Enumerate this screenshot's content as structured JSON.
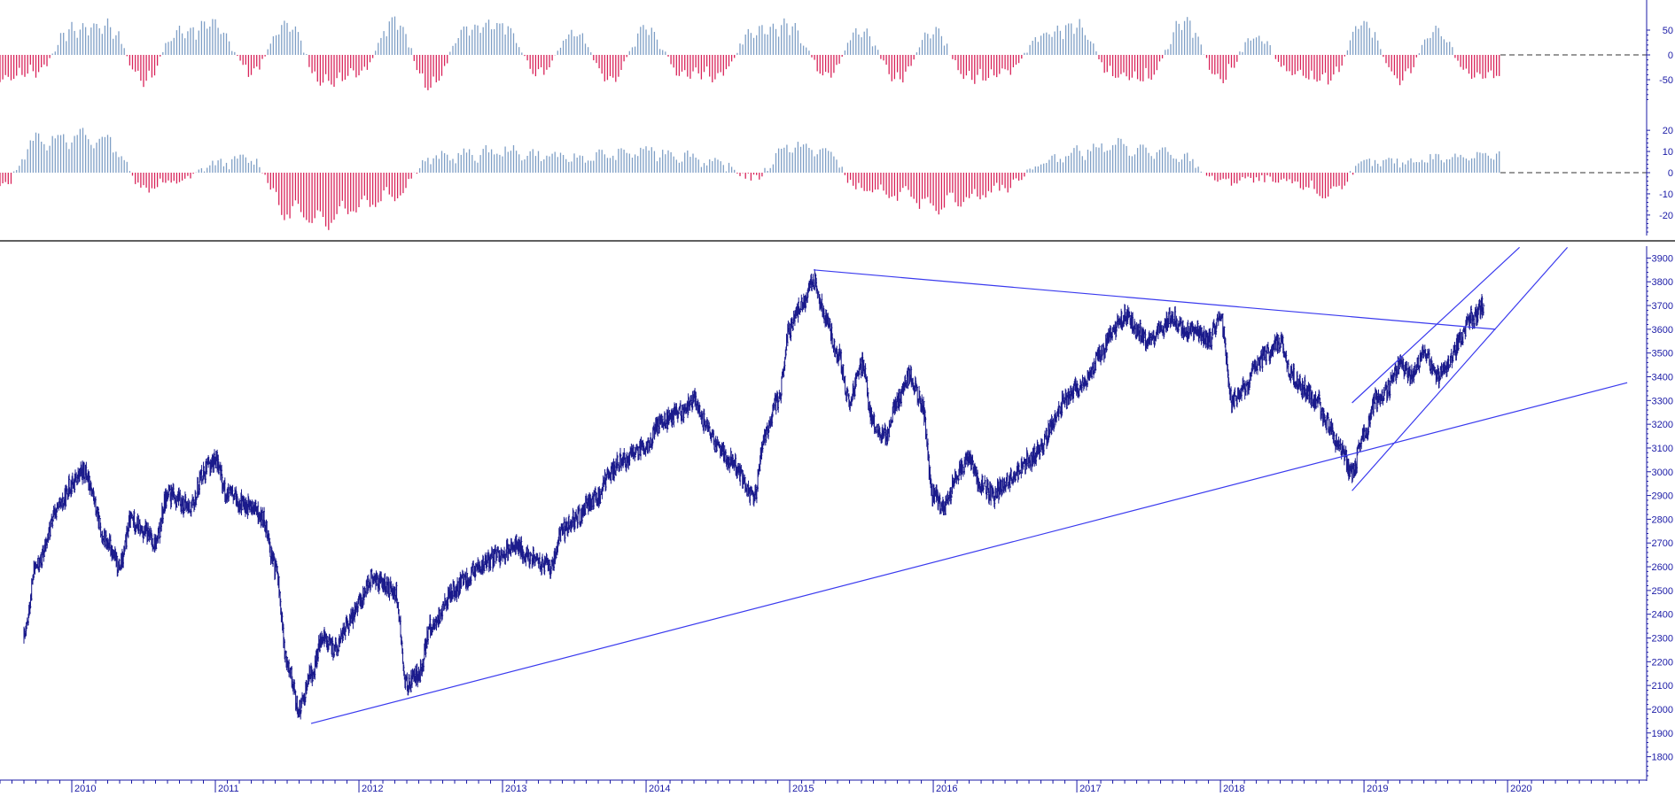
{
  "chart_data": [
    {
      "type": "bar",
      "panel": "upper-oscillator",
      "yticks": [
        50,
        0,
        -50
      ],
      "ylim": [
        -100,
        100
      ],
      "zero_line": "dashed",
      "colors": {
        "positive": "#7f9fc6",
        "negative": "#d9245a"
      },
      "series": [
        {
          "x": [
            "2009-07",
            "2009-10",
            "2010-01",
            "2010-04",
            "2010-07",
            "2010-10",
            "2011-01",
            "2011-04",
            "2011-07",
            "2011-10",
            "2012-01",
            "2012-04",
            "2012-07",
            "2012-10",
            "2013-01",
            "2013-04",
            "2013-07",
            "2013-10",
            "2014-01",
            "2014-04",
            "2014-07",
            "2014-10",
            "2015-01",
            "2015-04",
            "2015-07",
            "2015-10",
            "2016-01",
            "2016-04",
            "2016-07",
            "2016-10",
            "2017-01",
            "2017-04",
            "2017-07",
            "2017-10",
            "2018-01",
            "2018-04",
            "2018-07",
            "2018-10",
            "2019-01",
            "2019-04",
            "2019-07",
            "2019-10"
          ],
          "values": [
            -55,
            -40,
            60,
            70,
            -60,
            55,
            70,
            -40,
            75,
            -65,
            -40,
            80,
            -75,
            60,
            70,
            -45,
            55,
            -60,
            65,
            -45,
            -50,
            55,
            70,
            -50,
            60,
            -55,
            55,
            -55,
            -40,
            45,
            70,
            -45,
            -55,
            80,
            -55,
            45,
            -40,
            -60,
            75,
            -60,
            55,
            -45
          ]
        }
      ]
    },
    {
      "type": "bar",
      "panel": "lower-oscillator",
      "yticks": [
        20,
        10,
        0,
        -10,
        -20
      ],
      "ylim": [
        -28,
        28
      ],
      "zero_line": "dashed",
      "colors": {
        "positive": "#7f9fc6",
        "negative": "#d9245a"
      },
      "series": [
        {
          "x": [
            "2009-07",
            "2009-10",
            "2010-01",
            "2010-04",
            "2010-07",
            "2010-10",
            "2011-01",
            "2011-04",
            "2011-07",
            "2011-10",
            "2012-01",
            "2012-04",
            "2012-07",
            "2012-10",
            "2013-01",
            "2013-04",
            "2013-07",
            "2013-10",
            "2014-01",
            "2014-04",
            "2014-07",
            "2014-10",
            "2015-01",
            "2015-04",
            "2015-07",
            "2015-10",
            "2016-01",
            "2016-04",
            "2016-07",
            "2016-10",
            "2017-01",
            "2017-04",
            "2017-07",
            "2017-10",
            "2018-01",
            "2018-04",
            "2018-07",
            "2018-10",
            "2019-01",
            "2019-04",
            "2019-07",
            "2019-10"
          ],
          "values": [
            -10,
            18,
            20,
            18,
            -8,
            -5,
            5,
            8,
            -22,
            -26,
            -18,
            -12,
            8,
            10,
            12,
            10,
            8,
            10,
            12,
            10,
            5,
            -3,
            15,
            12,
            -10,
            -12,
            -18,
            -14,
            -8,
            5,
            12,
            15,
            12,
            8,
            -5,
            -4,
            -6,
            -12,
            5,
            6,
            8,
            10
          ]
        }
      ]
    },
    {
      "type": "line",
      "panel": "price",
      "yticks": [
        3900,
        3800,
        3700,
        3600,
        3500,
        3400,
        3300,
        3200,
        3100,
        3000,
        2900,
        2800,
        2700,
        2600,
        2500,
        2400,
        2300,
        2200,
        2100,
        2000,
        1900,
        1800
      ],
      "ylim": [
        1750,
        3950
      ],
      "year_labels": [
        "2010",
        "2011",
        "2012",
        "2013",
        "2014",
        "2015",
        "2016",
        "2017",
        "2018",
        "2019",
        "2020"
      ],
      "x": [
        "2009-09",
        "2009-10",
        "2009-12",
        "2010-01",
        "2010-02",
        "2010-04",
        "2010-05",
        "2010-06",
        "2010-07",
        "2010-08",
        "2010-09",
        "2010-11",
        "2010-12",
        "2011-01",
        "2011-02",
        "2011-04",
        "2011-05",
        "2011-06",
        "2011-07",
        "2011-08",
        "2011-09",
        "2011-10",
        "2011-11",
        "2011-12",
        "2012-01",
        "2012-02",
        "2012-04",
        "2012-05",
        "2012-06",
        "2012-07",
        "2012-09",
        "2012-10",
        "2012-11",
        "2013-01",
        "2013-02",
        "2013-03",
        "2013-05",
        "2013-06",
        "2013-07",
        "2013-09",
        "2013-10",
        "2013-11",
        "2014-01",
        "2014-02",
        "2014-04",
        "2014-05",
        "2014-06",
        "2014-07",
        "2014-08",
        "2014-10",
        "2014-11",
        "2014-12",
        "2015-01",
        "2015-02",
        "2015-03",
        "2015-04",
        "2015-05",
        "2015-06",
        "2015-07",
        "2015-08",
        "2015-09",
        "2015-10",
        "2015-11",
        "2015-12",
        "2016-01",
        "2016-02",
        "2016-03",
        "2016-04",
        "2016-05",
        "2016-06",
        "2016-07",
        "2016-08",
        "2016-09",
        "2016-10",
        "2016-11",
        "2016-12",
        "2017-01",
        "2017-02",
        "2017-03",
        "2017-04",
        "2017-05",
        "2017-06",
        "2017-07",
        "2017-08",
        "2017-09",
        "2017-10",
        "2017-11",
        "2017-12",
        "2018-01",
        "2018-02",
        "2018-03",
        "2018-04",
        "2018-05",
        "2018-06",
        "2018-07",
        "2018-08",
        "2018-09",
        "2018-10",
        "2018-11",
        "2018-12",
        "2019-01",
        "2019-02",
        "2019-03",
        "2019-04",
        "2019-05",
        "2019-06",
        "2019-07",
        "2019-08",
        "2019-09",
        "2019-10",
        "2019-11"
      ],
      "series": [
        {
          "values": [
            2300,
            2600,
            2850,
            2950,
            3000,
            2700,
            2600,
            2800,
            2750,
            2700,
            2900,
            2850,
            3000,
            3050,
            2900,
            2850,
            2800,
            2600,
            2200,
            2000,
            2150,
            2300,
            2250,
            2350,
            2450,
            2550,
            2500,
            2100,
            2150,
            2350,
            2500,
            2550,
            2600,
            2650,
            2700,
            2650,
            2600,
            2750,
            2800,
            2900,
            3000,
            3050,
            3100,
            3200,
            3250,
            3300,
            3200,
            3100,
            3050,
            2900,
            3150,
            3300,
            3600,
            3700,
            3800,
            3650,
            3500,
            3300,
            3450,
            3200,
            3150,
            3300,
            3400,
            3300,
            2900,
            2850,
            3000,
            3050,
            2950,
            2900,
            2950,
            3000,
            3050,
            3100,
            3200,
            3300,
            3350,
            3400,
            3500,
            3600,
            3650,
            3600,
            3550,
            3600,
            3650,
            3600,
            3600,
            3550,
            3650,
            3300,
            3350,
            3450,
            3500,
            3550,
            3400,
            3350,
            3300,
            3200,
            3100,
            3000,
            3150,
            3300,
            3350,
            3450,
            3400,
            3500,
            3400,
            3450,
            3550,
            3650,
            3700
          ]
        }
      ],
      "trendlines": [
        {
          "x1": "2011-09",
          "y1": 1940,
          "x2": "2020-11",
          "y2": 3375
        },
        {
          "x1": "2015-03",
          "y1": 3850,
          "x2": "2019-12",
          "y2": 3600
        },
        {
          "x1": "2018-12",
          "y1": 3290,
          "x2": "2020-02",
          "y2": 3945
        },
        {
          "x1": "2018-12",
          "y1": 2920,
          "x2": "2020-06",
          "y2": 3945
        }
      ]
    }
  ]
}
